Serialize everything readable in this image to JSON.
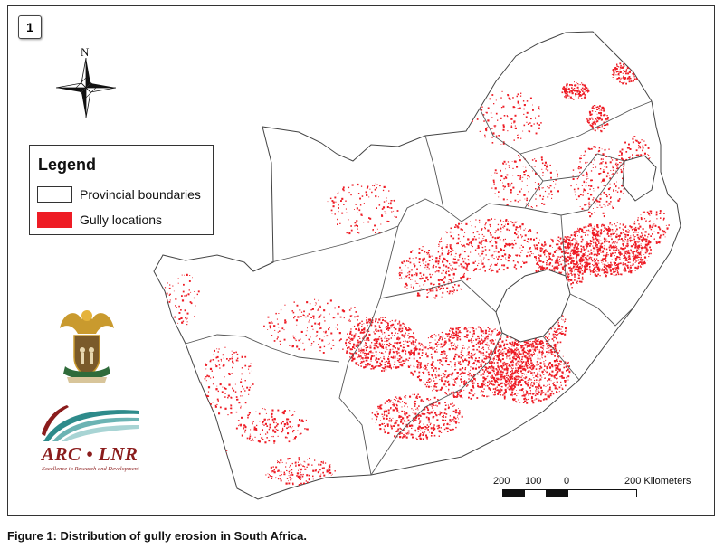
{
  "panel": {
    "number": "1"
  },
  "north": {
    "letter": "N"
  },
  "legend": {
    "title": "Legend",
    "items": [
      {
        "label": "Provincial boundaries",
        "swatch_fill": "#ffffff",
        "swatch_border": "#333333"
      },
      {
        "label": "Gully locations",
        "swatch_fill": "#ee1c25",
        "swatch_border": "#ee1c25"
      }
    ]
  },
  "scale": {
    "ticks": [
      "200",
      "100",
      "0",
      "200 Kilometers"
    ]
  },
  "logos": {
    "arc_text": "ARC • LNR",
    "arc_tagline": "Excellence in Research and Development"
  },
  "caption": "Figure 1: Distribution of gully erosion in South Africa.",
  "colors": {
    "gully": "#ee1c25",
    "boundary": "#444444",
    "arc_red": "#8b1c1c",
    "arc_teal": "#2e8b8b"
  }
}
